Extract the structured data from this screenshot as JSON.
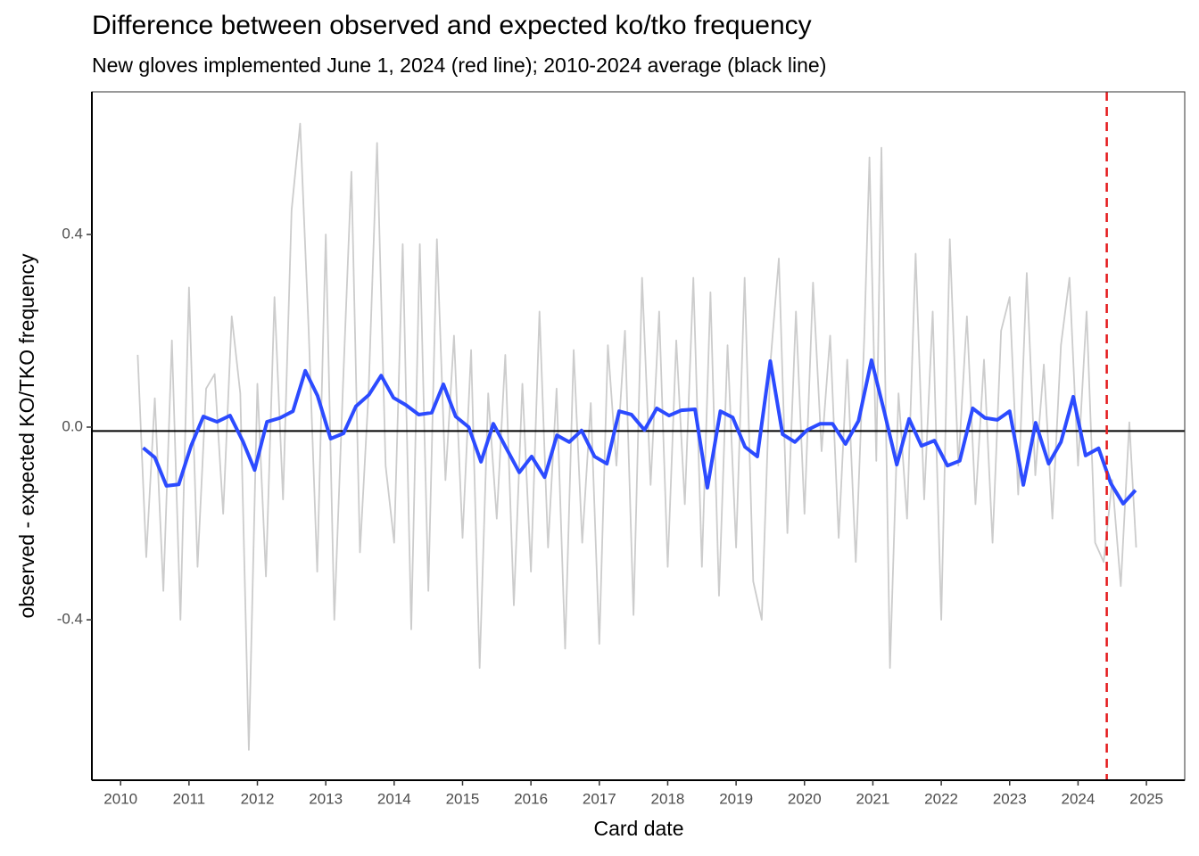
{
  "chart_data": {
    "type": "line",
    "title": "Difference between observed and expected ko/tko frequency",
    "subtitle": "New gloves implemented June 1, 2024 (red line); 2010-2024 average (black line)",
    "x_label": "Card date",
    "y_label": "observed - expected KO/TKO frequency",
    "xlim": [
      2009.58,
      2025.56
    ],
    "ylim": [
      -0.733,
      0.696
    ],
    "xticks": [
      2010,
      2011,
      2012,
      2013,
      2014,
      2015,
      2016,
      2017,
      2018,
      2019,
      2020,
      2021,
      2022,
      2023,
      2024,
      2025
    ],
    "yticks": [
      {
        "value": -0.4,
        "label": "-0.4"
      },
      {
        "value": 0,
        "label": "0.0"
      },
      0.4
    ],
    "grid": false,
    "hline": {
      "value": -0.008,
      "color": "#000000"
    },
    "vline": {
      "value": 2024.42,
      "color": "#e41a1c"
    },
    "series": [
      {
        "color": "#cccccc",
        "x": [
          2010.25,
          2010.375,
          2010.5,
          2010.625,
          2010.75,
          2010.875,
          2011,
          2011.125,
          2011.25,
          2011.375,
          2011.5,
          2011.625,
          2011.75,
          2011.875,
          2012,
          2012.125,
          2012.25,
          2012.375,
          2012.5,
          2012.625,
          2012.75,
          2012.875,
          2013,
          2013.125,
          2013.25,
          2013.375,
          2013.5,
          2013.625,
          2013.75,
          2013.875,
          2014,
          2014.125,
          2014.25,
          2014.375,
          2014.5,
          2014.625,
          2014.75,
          2014.875,
          2015,
          2015.125,
          2015.25,
          2015.375,
          2015.5,
          2015.625,
          2015.75,
          2015.875,
          2016,
          2016.125,
          2016.25,
          2016.375,
          2016.5,
          2016.625,
          2016.75,
          2016.875,
          2017,
          2017.125,
          2017.25,
          2017.375,
          2017.5,
          2017.625,
          2017.75,
          2017.875,
          2018,
          2018.125,
          2018.25,
          2018.375,
          2018.5,
          2018.625,
          2018.75,
          2018.875,
          2019,
          2019.125,
          2019.25,
          2019.375,
          2019.5,
          2019.625,
          2019.75,
          2019.875,
          2020,
          2020.125,
          2020.25,
          2020.375,
          2020.5,
          2020.625,
          2020.75,
          2020.875,
          2020.95,
          2021.05,
          2021.125,
          2021.25,
          2021.375,
          2021.5,
          2021.625,
          2021.75,
          2021.875,
          2022,
          2022.125,
          2022.25,
          2022.375,
          2022.5,
          2022.625,
          2022.75,
          2022.875,
          2023,
          2023.125,
          2023.25,
          2023.375,
          2023.5,
          2023.625,
          2023.75,
          2023.875,
          2024,
          2024.125,
          2024.25,
          2024.375,
          2024.5,
          2024.625,
          2024.75,
          2024.85
        ],
        "values": [
          0.15,
          -0.27,
          0.06,
          -0.34,
          0.18,
          -0.4,
          0.29,
          -0.29,
          0.08,
          0.11,
          -0.18,
          0.23,
          0.07,
          -0.67,
          0.09,
          -0.31,
          0.27,
          -0.15,
          0.45,
          0.63,
          0.2,
          -0.3,
          0.4,
          -0.4,
          0.08,
          0.53,
          -0.26,
          0.07,
          0.59,
          -0.08,
          -0.24,
          0.38,
          -0.42,
          0.38,
          -0.34,
          0.39,
          -0.11,
          0.19,
          -0.23,
          0.16,
          -0.5,
          0.07,
          -0.19,
          0.15,
          -0.37,
          0.09,
          -0.3,
          0.24,
          -0.25,
          0.08,
          -0.46,
          0.16,
          -0.24,
          0.05,
          -0.45,
          0.17,
          -0.08,
          0.2,
          -0.39,
          0.31,
          -0.12,
          0.24,
          -0.29,
          0.18,
          -0.16,
          0.31,
          -0.29,
          0.28,
          -0.35,
          0.17,
          -0.25,
          0.31,
          -0.32,
          -0.4,
          0.13,
          0.35,
          -0.22,
          0.24,
          -0.18,
          0.3,
          -0.05,
          0.19,
          -0.23,
          0.14,
          -0.28,
          0.19,
          0.56,
          -0.07,
          0.58,
          -0.5,
          0.07,
          -0.19,
          0.36,
          -0.15,
          0.24,
          -0.4,
          0.39,
          -0.08,
          0.23,
          -0.16,
          0.14,
          -0.24,
          0.2,
          0.27,
          -0.14,
          0.32,
          -0.1,
          0.13,
          -0.19,
          0.17,
          0.31,
          -0.08,
          0.24,
          -0.24,
          -0.28,
          -0.11,
          -0.33,
          0.01,
          -0.25
        ]
      },
      {
        "color": "#2c4bff",
        "x": [
          2010.33,
          2010.5,
          2010.67,
          2010.85,
          2011.03,
          2011.21,
          2011.41,
          2011.6,
          2011.79,
          2011.96,
          2012.14,
          2012.33,
          2012.52,
          2012.7,
          2012.88,
          2013.07,
          2013.26,
          2013.44,
          2013.63,
          2013.81,
          2013.99,
          2014.17,
          2014.36,
          2014.55,
          2014.72,
          2014.9,
          2015.09,
          2015.27,
          2015.45,
          2015.64,
          2015.83,
          2016.01,
          2016.2,
          2016.38,
          2016.56,
          2016.74,
          2016.93,
          2017.11,
          2017.29,
          2017.47,
          2017.66,
          2017.84,
          2018.02,
          2018.2,
          2018.4,
          2018.58,
          2018.77,
          2018.95,
          2019.13,
          2019.31,
          2019.5,
          2019.68,
          2019.86,
          2020.04,
          2020.23,
          2020.41,
          2020.6,
          2020.79,
          2020.98,
          2021.17,
          2021.35,
          2021.53,
          2021.71,
          2021.9,
          2022.09,
          2022.27,
          2022.46,
          2022.64,
          2022.82,
          2023,
          2023.2,
          2023.38,
          2023.57,
          2023.75,
          2023.93,
          2024.11,
          2024.3,
          2024.48,
          2024.66,
          2024.84
        ],
        "values": [
          -0.043,
          -0.063,
          -0.122,
          -0.119,
          -0.039,
          0.022,
          0.011,
          0.024,
          -0.03,
          -0.089,
          0.011,
          0.019,
          0.033,
          0.117,
          0.065,
          -0.024,
          -0.013,
          0.043,
          0.067,
          0.107,
          0.061,
          0.046,
          0.026,
          0.03,
          0.089,
          0.022,
          0,
          -0.072,
          0.007,
          -0.044,
          -0.094,
          -0.061,
          -0.104,
          -0.017,
          -0.031,
          -0.007,
          -0.061,
          -0.076,
          0.033,
          0.026,
          -0.006,
          0.039,
          0.024,
          0.035,
          0.037,
          -0.126,
          0.033,
          0.02,
          -0.041,
          -0.061,
          0.137,
          -0.015,
          -0.031,
          -0.006,
          0.007,
          0.007,
          -0.035,
          0.013,
          0.139,
          0.03,
          -0.078,
          0.017,
          -0.039,
          -0.028,
          -0.08,
          -0.07,
          0.039,
          0.019,
          0.015,
          0.033,
          -0.12,
          0.009,
          -0.076,
          -0.031,
          0.063,
          -0.059,
          -0.044,
          -0.117,
          -0.159,
          -0.131
        ]
      }
    ]
  }
}
